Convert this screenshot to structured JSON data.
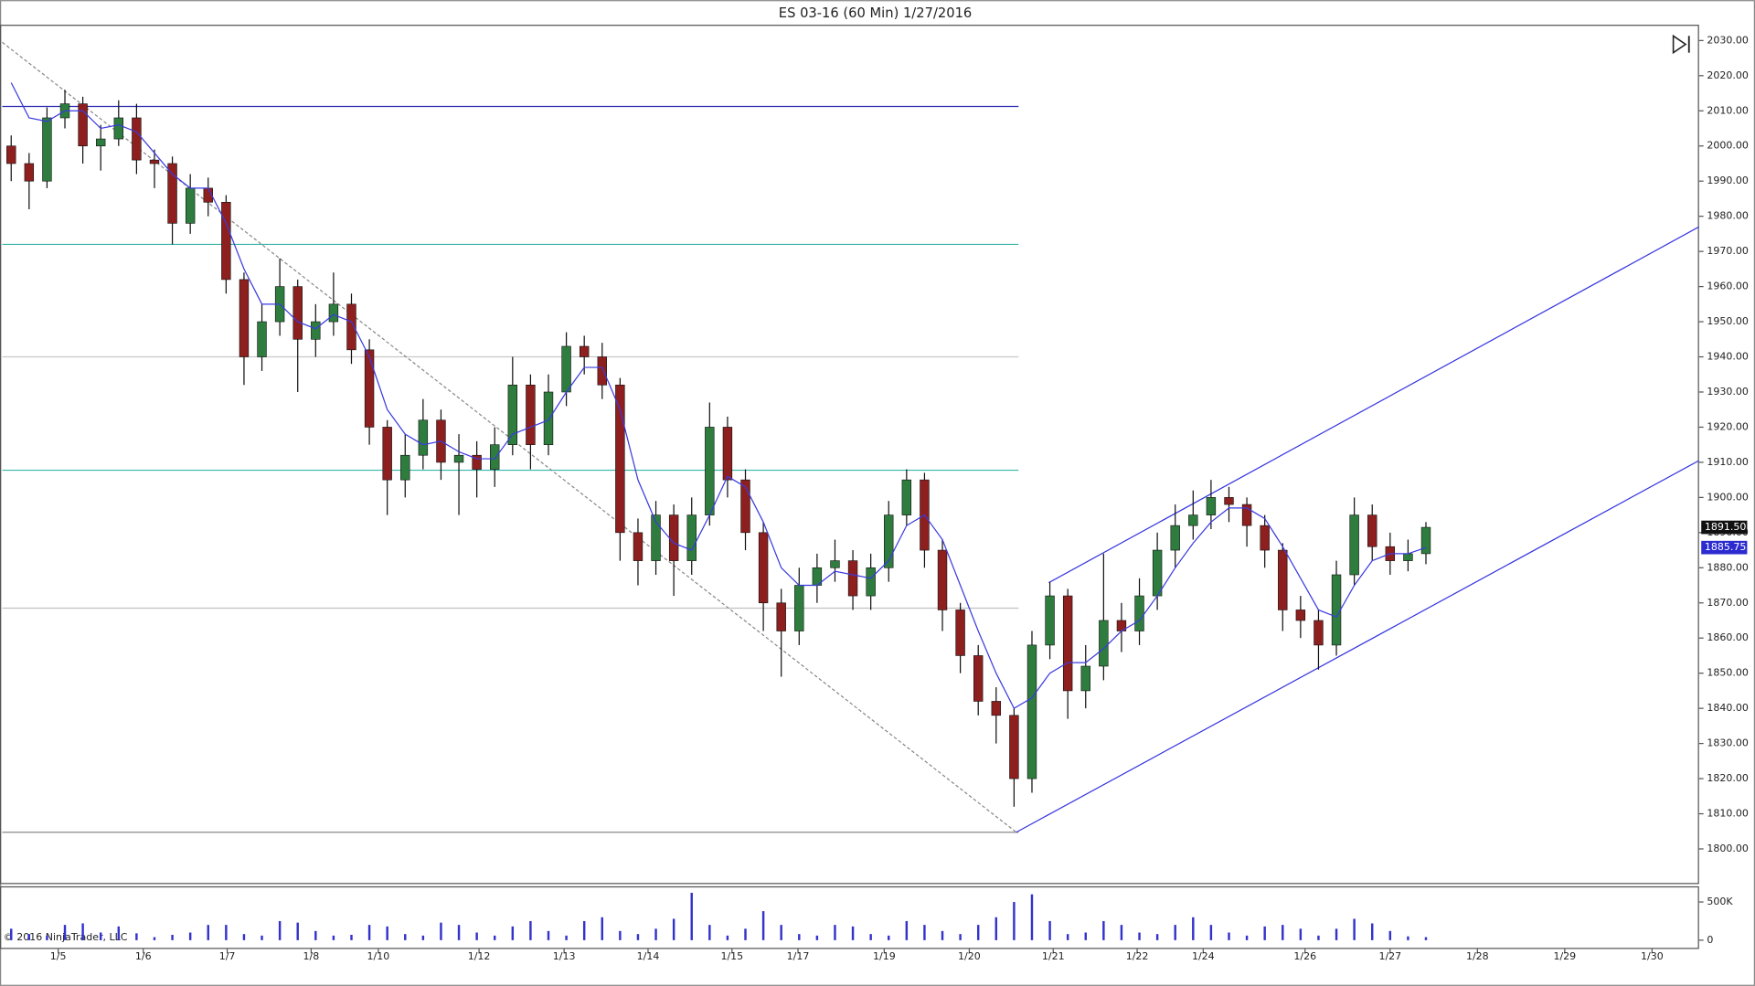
{
  "chart_data": {
    "type": "candlestick",
    "title": "ES 03-16 (60 Min)  1/27/2016",
    "copyright": "© 2016 NinjaTrader, LLC",
    "up_color": "#2e7d3e",
    "down_color": "#8e1f1f",
    "x": [
      2,
      6,
      10,
      14,
      18,
      22,
      26,
      30,
      34,
      38,
      42,
      46,
      50,
      54,
      58,
      62,
      66,
      70,
      74,
      78,
      82,
      86,
      90,
      94,
      98,
      102,
      106,
      110,
      114,
      118,
      122,
      126,
      130,
      134,
      138,
      142,
      146,
      150,
      154,
      158,
      162,
      166,
      170,
      174,
      178,
      182,
      186,
      190,
      194,
      198,
      202,
      206,
      210,
      214,
      218,
      222,
      226,
      230,
      234,
      238,
      242,
      246,
      250,
      254,
      258,
      262,
      266,
      270,
      274,
      278,
      282,
      286,
      290,
      294,
      298,
      302,
      306,
      310,
      314,
      318
    ],
    "ohlc": [
      [
        2000,
        2003,
        1990,
        1995
      ],
      [
        1995,
        1998,
        1982,
        1990
      ],
      [
        1990,
        2011,
        1988,
        2008
      ],
      [
        2008,
        2016,
        2005,
        2012
      ],
      [
        2012,
        2014,
        1995,
        2000
      ],
      [
        2000,
        2006,
        1993,
        2002
      ],
      [
        2002,
        2013,
        2000,
        2008
      ],
      [
        2008,
        2012,
        1992,
        1996
      ],
      [
        1996,
        1999,
        1988,
        1995
      ],
      [
        1995,
        1997,
        1972,
        1978
      ],
      [
        1978,
        1992,
        1975,
        1988
      ],
      [
        1988,
        1991,
        1980,
        1984
      ],
      [
        1984,
        1986,
        1958,
        1962
      ],
      [
        1962,
        1964,
        1932,
        1940
      ],
      [
        1940,
        1955,
        1936,
        1950
      ],
      [
        1950,
        1968,
        1946,
        1960
      ],
      [
        1960,
        1962,
        1930,
        1945
      ],
      [
        1945,
        1955,
        1940,
        1950
      ],
      [
        1950,
        1964,
        1946,
        1955
      ],
      [
        1955,
        1958,
        1938,
        1942
      ],
      [
        1942,
        1945,
        1915,
        1920
      ],
      [
        1920,
        1922,
        1895,
        1905
      ],
      [
        1905,
        1918,
        1900,
        1912
      ],
      [
        1912,
        1928,
        1908,
        1922
      ],
      [
        1922,
        1925,
        1905,
        1910
      ],
      [
        1910,
        1918,
        1895,
        1912
      ],
      [
        1912,
        1916,
        1900,
        1908
      ],
      [
        1908,
        1920,
        1903,
        1915
      ],
      [
        1915,
        1940,
        1912,
        1932
      ],
      [
        1932,
        1935,
        1908,
        1915
      ],
      [
        1915,
        1935,
        1912,
        1930
      ],
      [
        1930,
        1947,
        1926,
        1943
      ],
      [
        1943,
        1946,
        1935,
        1940
      ],
      [
        1940,
        1944,
        1928,
        1932
      ],
      [
        1932,
        1934,
        1882,
        1890
      ],
      [
        1890,
        1894,
        1875,
        1882
      ],
      [
        1882,
        1899,
        1878,
        1895
      ],
      [
        1895,
        1898,
        1872,
        1882
      ],
      [
        1882,
        1900,
        1878,
        1895
      ],
      [
        1895,
        1927,
        1892,
        1920
      ],
      [
        1920,
        1923,
        1900,
        1905
      ],
      [
        1905,
        1908,
        1885,
        1890
      ],
      [
        1890,
        1893,
        1862,
        1870
      ],
      [
        1870,
        1874,
        1849,
        1862
      ],
      [
        1862,
        1880,
        1858,
        1875
      ],
      [
        1875,
        1884,
        1870,
        1880
      ],
      [
        1880,
        1888,
        1876,
        1882
      ],
      [
        1882,
        1885,
        1868,
        1872
      ],
      [
        1872,
        1884,
        1868,
        1880
      ],
      [
        1880,
        1899,
        1876,
        1895
      ],
      [
        1895,
        1908,
        1892,
        1905
      ],
      [
        1905,
        1907,
        1880,
        1885
      ],
      [
        1885,
        1888,
        1862,
        1868
      ],
      [
        1868,
        1870,
        1850,
        1855
      ],
      [
        1855,
        1858,
        1838,
        1842
      ],
      [
        1842,
        1846,
        1830,
        1838
      ],
      [
        1838,
        1840,
        1812,
        1820
      ],
      [
        1820,
        1862,
        1816,
        1858
      ],
      [
        1858,
        1876,
        1854,
        1872
      ],
      [
        1872,
        1874,
        1837,
        1845
      ],
      [
        1845,
        1858,
        1840,
        1852
      ],
      [
        1852,
        1884,
        1848,
        1865
      ],
      [
        1865,
        1870,
        1856,
        1862
      ],
      [
        1862,
        1877,
        1858,
        1872
      ],
      [
        1872,
        1890,
        1868,
        1885
      ],
      [
        1885,
        1898,
        1880,
        1892
      ],
      [
        1892,
        1902,
        1888,
        1895
      ],
      [
        1895,
        1905,
        1891,
        1900
      ],
      [
        1900,
        1903,
        1893,
        1898
      ],
      [
        1898,
        1900,
        1886,
        1892
      ],
      [
        1892,
        1895,
        1880,
        1885
      ],
      [
        1885,
        1887,
        1862,
        1868
      ],
      [
        1868,
        1872,
        1860,
        1865
      ],
      [
        1865,
        1868,
        1851,
        1858
      ],
      [
        1858,
        1882,
        1855,
        1878
      ],
      [
        1878,
        1900,
        1875,
        1895
      ],
      [
        1895,
        1898,
        1882,
        1886
      ],
      [
        1886,
        1890,
        1878,
        1882
      ],
      [
        1882,
        1888,
        1879,
        1884
      ],
      [
        1884,
        1893,
        1881,
        1891.5
      ]
    ],
    "ma": {
      "color": "#3a3ae0",
      "values": [
        2018,
        2008,
        2007,
        2010,
        2010,
        2005,
        2006,
        2004,
        1998,
        1992,
        1988,
        1988,
        1978,
        1965,
        1955,
        1955,
        1950,
        1948,
        1952,
        1950,
        1940,
        1925,
        1918,
        1915,
        1916,
        1913,
        1911,
        1911,
        1918,
        1920,
        1922,
        1930,
        1937,
        1937,
        1925,
        1905,
        1893,
        1887,
        1885,
        1895,
        1906,
        1903,
        1893,
        1880,
        1875,
        1875,
        1879,
        1878,
        1877,
        1882,
        1892,
        1895,
        1888,
        1875,
        1862,
        1850,
        1840,
        1843,
        1850,
        1853,
        1853,
        1857,
        1862,
        1865,
        1872,
        1880,
        1887,
        1893,
        1897,
        1897,
        1894,
        1886,
        1877,
        1868,
        1866,
        1875,
        1882,
        1884,
        1884,
        1885.75
      ]
    },
    "xlim": [
      0,
      379
    ],
    "xticks": [
      {
        "value": 12.5,
        "label": "1/5"
      },
      {
        "value": 31.5,
        "label": "1/6"
      },
      {
        "value": 50.25,
        "label": "1/7"
      },
      {
        "value": 69,
        "label": "1/8"
      },
      {
        "value": 84,
        "label": "1/10"
      },
      {
        "value": 106.5,
        "label": "1/12"
      },
      {
        "value": 125.5,
        "label": "1/13"
      },
      {
        "value": 144.25,
        "label": "1/14"
      },
      {
        "value": 163,
        "label": "1/15"
      },
      {
        "value": 177.75,
        "label": "1/17"
      },
      {
        "value": 197,
        "label": "1/19"
      },
      {
        "value": 216,
        "label": "1/20"
      },
      {
        "value": 234.75,
        "label": "1/21"
      },
      {
        "value": 253.5,
        "label": "1/22"
      },
      {
        "value": 268.25,
        "label": "1/24"
      },
      {
        "value": 291,
        "label": "1/26"
      },
      {
        "value": 310,
        "label": "1/27"
      },
      {
        "value": 329.5,
        "label": "1/28"
      },
      {
        "value": 349,
        "label": "1/29"
      },
      {
        "value": 368.5,
        "label": "1/30"
      }
    ],
    "ylim": [
      1790,
      2034.5
    ],
    "yticks": [
      {
        "value": 1800,
        "label": "1800.00"
      },
      {
        "value": 1810,
        "label": "1810.00"
      },
      {
        "value": 1820,
        "label": "1820.00"
      },
      {
        "value": 1830,
        "label": "1830.00"
      },
      {
        "value": 1840,
        "label": "1840.00"
      },
      {
        "value": 1850,
        "label": "1850.00"
      },
      {
        "value": 1860,
        "label": "1860.00"
      },
      {
        "value": 1870,
        "label": "1870.00"
      },
      {
        "value": 1880,
        "label": "1880.00"
      },
      {
        "value": 1890,
        "label": "1890.00"
      },
      {
        "value": 1900,
        "label": "1900.00"
      },
      {
        "value": 1910,
        "label": "1910.00"
      },
      {
        "value": 1920,
        "label": "1920.00"
      },
      {
        "value": 1930,
        "label": "1930.00"
      },
      {
        "value": 1940,
        "label": "1940.00"
      },
      {
        "value": 1950,
        "label": "1950.00"
      },
      {
        "value": 1960,
        "label": "1960.00"
      },
      {
        "value": 1970,
        "label": "1970.00"
      },
      {
        "value": 1980,
        "label": "1980.00"
      },
      {
        "value": 1990,
        "label": "1990.00"
      },
      {
        "value": 2000,
        "label": "2000.00"
      },
      {
        "value": 2010,
        "label": "2010.00"
      },
      {
        "value": 2020,
        "label": "2020.00"
      },
      {
        "value": 2030,
        "label": "2030.00"
      }
    ],
    "price_marker": {
      "value": 1891.5,
      "label": "1891.50",
      "color": "#111111"
    },
    "ma_marker": {
      "value": 1885.75,
      "label": "1885.75",
      "color": "#2b2bd0"
    },
    "drawings": [
      {
        "x": [
          0,
          227
        ],
        "y": [
          2011.25,
          2011.25
        ],
        "color": "#2b2bb0",
        "dashed": false
      },
      {
        "x": [
          0,
          227
        ],
        "y": [
          1972,
          1972
        ],
        "color": "#35b5a8",
        "dashed": false
      },
      {
        "x": [
          0,
          227
        ],
        "y": [
          1940,
          1940
        ],
        "color": "#c8c8c8",
        "dashed": false
      },
      {
        "x": [
          0,
          227
        ],
        "y": [
          1907.75,
          1907.75
        ],
        "color": "#35b5a8",
        "dashed": false
      },
      {
        "x": [
          0,
          227
        ],
        "y": [
          1868.5,
          1868.5
        ],
        "color": "#c0c0c0",
        "dashed": false
      },
      {
        "x": [
          0,
          227
        ],
        "y": [
          1804.75,
          1804.75
        ],
        "color": "#888888",
        "dashed": false
      },
      {
        "x": [
          0,
          226.5
        ],
        "y": [
          2029.5,
          1804.75
        ],
        "color": "#888888",
        "dashed": true
      },
      {
        "x": [
          226.5,
          379
        ],
        "y": [
          1804.75,
          1910.5
        ],
        "color": "#3535e0",
        "dashed": false
      },
      {
        "x": [
          233.75,
          379
        ],
        "y": [
          1875.75,
          1977
        ],
        "color": "#3535e0",
        "dashed": false
      }
    ],
    "volume": {
      "color": "#3333cc",
      "ylim": [
        -115000,
        705000
      ],
      "yticks": [
        0,
        {
          "value": 500000,
          "label": "500K"
        }
      ],
      "values": [
        150000,
        80000,
        60000,
        200000,
        220000,
        100000,
        180000,
        90000,
        40000,
        70000,
        100000,
        200000,
        200000,
        80000,
        60000,
        250000,
        230000,
        120000,
        60000,
        70000,
        200000,
        180000,
        80000,
        60000,
        230000,
        200000,
        100000,
        60000,
        180000,
        250000,
        120000,
        60000,
        250000,
        300000,
        120000,
        80000,
        150000,
        280000,
        620000,
        200000,
        60000,
        150000,
        380000,
        200000,
        80000,
        60000,
        200000,
        180000,
        80000,
        60000,
        250000,
        200000,
        120000,
        80000,
        200000,
        300000,
        500000,
        600000,
        250000,
        80000,
        100000,
        250000,
        200000,
        100000,
        80000,
        200000,
        300000,
        200000,
        100000,
        60000,
        180000,
        200000,
        150000,
        60000,
        150000,
        280000,
        220000,
        120000,
        50000,
        40000
      ]
    }
  }
}
